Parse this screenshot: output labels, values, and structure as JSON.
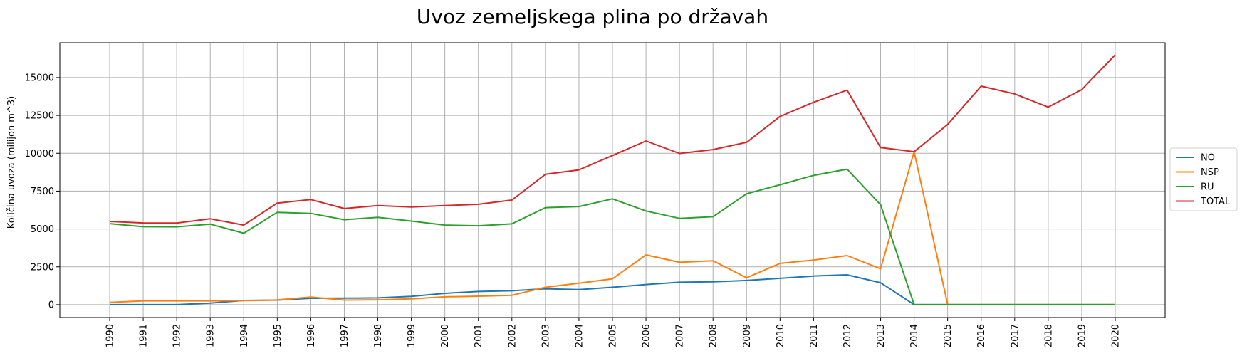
{
  "chart_data": {
    "type": "line",
    "title": "Uvoz zemeljskega plina po državah",
    "xlabel": "",
    "ylabel": "Količina uvoza (milijon m^3)",
    "x": [
      "1990",
      "1991",
      "1992",
      "1993",
      "1994",
      "1995",
      "1996",
      "1997",
      "1998",
      "1999",
      "2000",
      "2001",
      "2002",
      "2003",
      "2004",
      "2005",
      "2006",
      "2007",
      "2008",
      "2009",
      "2010",
      "2011",
      "2012",
      "2013",
      "2014",
      "2015",
      "2016",
      "2017",
      "2018",
      "2019",
      "2020"
    ],
    "ylim": [
      -850,
      17300
    ],
    "yticks": [
      0,
      2500,
      5000,
      7500,
      10000,
      12500,
      15000
    ],
    "grid": true,
    "legend_position": "center-right",
    "series": [
      {
        "name": "NO",
        "color": "#1f77b4",
        "values": [
          0,
          0,
          0,
          100,
          280,
          300,
          420,
          430,
          450,
          550,
          750,
          870,
          920,
          1050,
          1000,
          1150,
          1330,
          1480,
          1510,
          1600,
          1740,
          1890,
          1970,
          1450,
          0,
          0,
          0,
          0,
          0,
          0,
          0
        ]
      },
      {
        "name": "NSP",
        "color": "#ff7f0e",
        "values": [
          150,
          250,
          250,
          250,
          270,
          310,
          500,
          300,
          320,
          380,
          520,
          560,
          620,
          1150,
          1420,
          1710,
          3290,
          2800,
          2900,
          1780,
          2730,
          2950,
          3240,
          2370,
          10100,
          0,
          0,
          0,
          0,
          0,
          0
        ]
      },
      {
        "name": "RU",
        "color": "#2ca02c",
        "values": [
          5350,
          5150,
          5140,
          5320,
          4720,
          6100,
          6030,
          5610,
          5770,
          5520,
          5260,
          5210,
          5340,
          6410,
          6480,
          6990,
          6190,
          5700,
          5810,
          7320,
          7920,
          8540,
          8950,
          6600,
          0,
          0,
          0,
          0,
          0,
          0,
          0
        ]
      },
      {
        "name": "TOTAL",
        "color": "#d62728",
        "values": [
          5500,
          5400,
          5390,
          5670,
          5260,
          6710,
          6940,
          6350,
          6540,
          6450,
          6540,
          6630,
          6910,
          8610,
          8900,
          9850,
          10810,
          9990,
          10240,
          10720,
          12430,
          13370,
          14170,
          10380,
          10100,
          11900,
          14430,
          13920,
          13050,
          14200,
          16500
        ]
      }
    ]
  }
}
